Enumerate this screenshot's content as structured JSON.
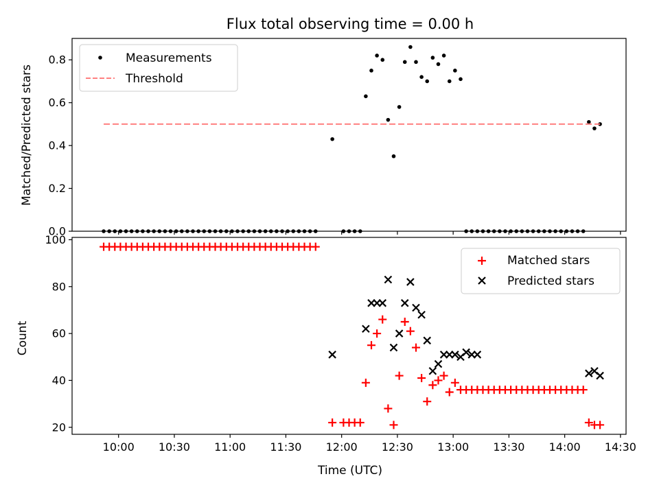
{
  "chart_data": [
    {
      "type": "scatter",
      "title": "Flux total observing time = 0.00 h",
      "xlabel": "",
      "ylabel": "Matched/Predicted stars",
      "xlim": [
        "09:35",
        "14:33"
      ],
      "ylim": [
        0,
        0.9
      ],
      "yticks": [
        0.0,
        0.2,
        0.4,
        0.6,
        0.8
      ],
      "ytick_labels": [
        "0.0",
        "0.2",
        "0.4",
        "0.6",
        "0.8"
      ],
      "grid": false,
      "legend_position": "top-left",
      "series": [
        {
          "name": "Measurements",
          "marker": "dot",
          "color": "#000000",
          "x": [
            "09:52",
            "09:55",
            "09:58",
            "10:01",
            "10:04",
            "10:07",
            "10:10",
            "10:13",
            "10:16",
            "10:19",
            "10:22",
            "10:25",
            "10:28",
            "10:31",
            "10:34",
            "10:37",
            "10:40",
            "10:43",
            "10:46",
            "10:49",
            "10:52",
            "10:55",
            "10:58",
            "11:01",
            "11:04",
            "11:07",
            "11:10",
            "11:13",
            "11:16",
            "11:19",
            "11:22",
            "11:25",
            "11:28",
            "11:31",
            "11:34",
            "11:37",
            "11:40",
            "11:43",
            "11:46",
            "11:55",
            "12:01",
            "12:04",
            "12:07",
            "12:10",
            "12:13",
            "12:16",
            "12:19",
            "12:22",
            "12:25",
            "12:28",
            "12:31",
            "12:34",
            "12:37",
            "12:40",
            "12:43",
            "12:46",
            "12:49",
            "12:52",
            "12:55",
            "12:58",
            "13:01",
            "13:04",
            "13:07",
            "13:10",
            "13:13",
            "13:16",
            "13:19",
            "13:22",
            "13:25",
            "13:28",
            "13:31",
            "13:34",
            "13:37",
            "13:40",
            "13:43",
            "13:46",
            "13:49",
            "13:52",
            "13:55",
            "13:58",
            "14:01",
            "14:04",
            "14:07",
            "14:10",
            "14:13",
            "14:16",
            "14:19"
          ],
          "y": [
            0,
            0,
            0,
            0,
            0,
            0,
            0,
            0,
            0,
            0,
            0,
            0,
            0,
            0,
            0,
            0,
            0,
            0,
            0,
            0,
            0,
            0,
            0,
            0,
            0,
            0,
            0,
            0,
            0,
            0,
            0,
            0,
            0,
            0,
            0,
            0,
            0,
            0,
            0,
            0.43,
            0,
            0,
            0,
            0,
            0.63,
            0.75,
            0.82,
            0.8,
            0.52,
            0.35,
            0.58,
            0.79,
            0.86,
            0.79,
            0.72,
            0.7,
            0.81,
            0.78,
            0.82,
            0.7,
            0.75,
            0.71,
            0,
            0,
            0,
            0,
            0,
            0,
            0,
            0,
            0,
            0,
            0,
            0,
            0,
            0,
            0,
            0,
            0,
            0,
            0,
            0,
            0,
            0,
            0.51,
            0.48,
            0.5
          ]
        },
        {
          "name": "Threshold",
          "marker": "dashed-line",
          "color": "#ff8080",
          "x": [
            "09:52",
            "14:19"
          ],
          "y": [
            0.5,
            0.5
          ]
        }
      ]
    },
    {
      "type": "scatter",
      "title": "",
      "xlabel": "Time (UTC)",
      "ylabel": "Count",
      "xlim": [
        "09:35",
        "14:33"
      ],
      "ylim": [
        17,
        101
      ],
      "xtick_labels": [
        "10:00",
        "10:30",
        "11:00",
        "11:30",
        "12:00",
        "12:30",
        "13:00",
        "13:30",
        "14:00",
        "14:30"
      ],
      "yticks": [
        20,
        40,
        60,
        80,
        100
      ],
      "ytick_labels": [
        "20",
        "40",
        "60",
        "80",
        "100"
      ],
      "grid": false,
      "legend_position": "top-right",
      "series": [
        {
          "name": "Matched stars",
          "marker": "plus",
          "color": "#ff0000",
          "x": [
            "09:52",
            "09:55",
            "09:58",
            "10:01",
            "10:04",
            "10:07",
            "10:10",
            "10:13",
            "10:16",
            "10:19",
            "10:22",
            "10:25",
            "10:28",
            "10:31",
            "10:34",
            "10:37",
            "10:40",
            "10:43",
            "10:46",
            "10:49",
            "10:52",
            "10:55",
            "10:58",
            "11:01",
            "11:04",
            "11:07",
            "11:10",
            "11:13",
            "11:16",
            "11:19",
            "11:22",
            "11:25",
            "11:28",
            "11:31",
            "11:34",
            "11:37",
            "11:40",
            "11:43",
            "11:46",
            "11:55",
            "12:01",
            "12:04",
            "12:07",
            "12:10",
            "12:13",
            "12:16",
            "12:19",
            "12:22",
            "12:25",
            "12:28",
            "12:31",
            "12:34",
            "12:37",
            "12:40",
            "12:43",
            "12:46",
            "12:49",
            "12:52",
            "12:55",
            "12:58",
            "13:01",
            "13:04",
            "13:07",
            "13:10",
            "13:13",
            "13:16",
            "13:19",
            "13:22",
            "13:25",
            "13:28",
            "13:31",
            "13:34",
            "13:37",
            "13:40",
            "13:43",
            "13:46",
            "13:49",
            "13:52",
            "13:55",
            "13:58",
            "14:01",
            "14:04",
            "14:07",
            "14:10",
            "14:13",
            "14:16",
            "14:19"
          ],
          "y": [
            97,
            97,
            97,
            97,
            97,
            97,
            97,
            97,
            97,
            97,
            97,
            97,
            97,
            97,
            97,
            97,
            97,
            97,
            97,
            97,
            97,
            97,
            97,
            97,
            97,
            97,
            97,
            97,
            97,
            97,
            97,
            97,
            97,
            97,
            97,
            97,
            97,
            97,
            97,
            22,
            22,
            22,
            22,
            22,
            39,
            55,
            60,
            66,
            28,
            21,
            42,
            65,
            61,
            54,
            41,
            31,
            38,
            40,
            42,
            35,
            39,
            36,
            36,
            36,
            36,
            36,
            36,
            36,
            36,
            36,
            36,
            36,
            36,
            36,
            36,
            36,
            36,
            36,
            36,
            36,
            36,
            36,
            36,
            36,
            22,
            21,
            21
          ]
        },
        {
          "name": "Predicted stars",
          "marker": "x",
          "color": "#000000",
          "x": [
            "11:55",
            "12:13",
            "12:16",
            "12:19",
            "12:22",
            "12:25",
            "12:28",
            "12:31",
            "12:34",
            "12:37",
            "12:40",
            "12:43",
            "12:46",
            "12:49",
            "12:52",
            "12:55",
            "12:58",
            "13:01",
            "13:04",
            "13:07",
            "13:10",
            "13:13",
            "14:13",
            "14:16",
            "14:19"
          ],
          "y": [
            51,
            62,
            73,
            73,
            73,
            83,
            54,
            60,
            73,
            82,
            71,
            68,
            57,
            44,
            47,
            51,
            51,
            51,
            50,
            52,
            51,
            51,
            43,
            44,
            42
          ]
        }
      ]
    }
  ]
}
